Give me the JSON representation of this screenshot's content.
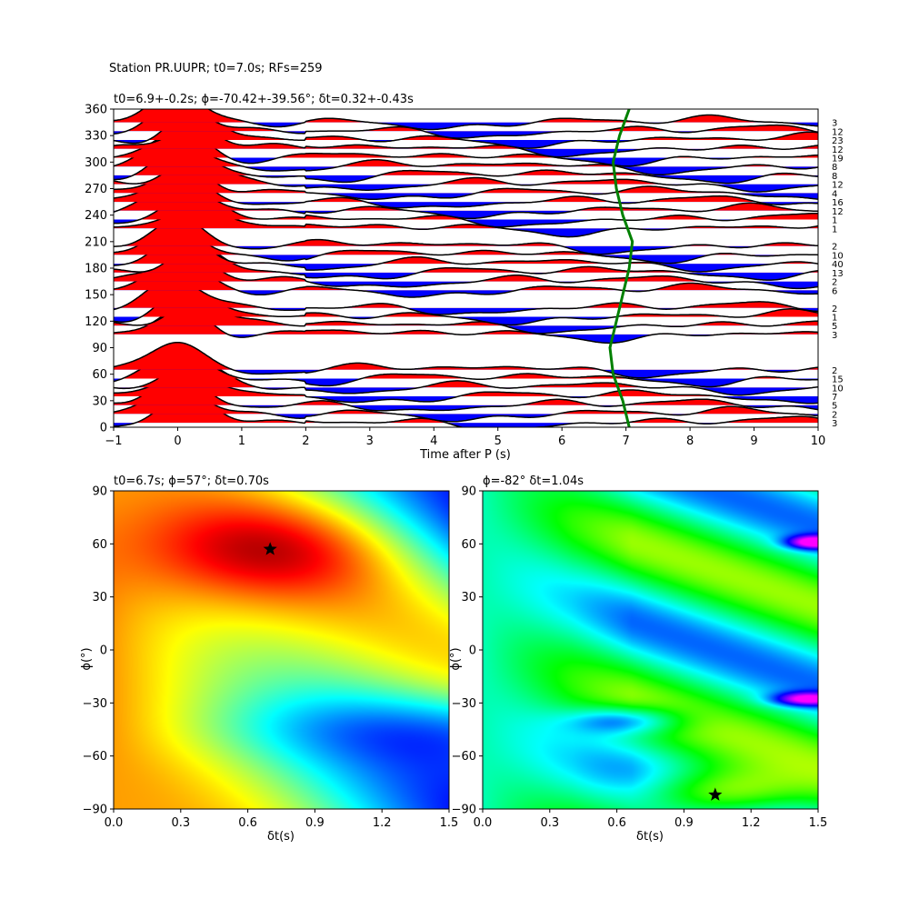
{
  "figure_title": "Station PR.UUPR; t0=7.0s; RFs=259",
  "panels": {
    "top": {
      "title": "t0=6.9+-0.2s; ϕ=-70.42+-39.56°; δt=0.32+-0.43s",
      "xlabel": "Time after P (s)"
    },
    "bottom_left": {
      "title": "t0=6.7s; ϕ=57°; δt=0.70s",
      "xlabel": "δt(s)",
      "ylabel": "ϕ(°)"
    },
    "bottom_right": {
      "title": "ϕ=-82° δt=1.04s",
      "xlabel": "δt(s)",
      "ylabel": "ϕ(°)"
    }
  },
  "colors": {
    "positive": "#ff0000",
    "negative": "#0000ff",
    "trace": "#000000",
    "t0_curve": "#008000",
    "marker": "#000000"
  },
  "chart_data": [
    {
      "type": "line",
      "subtype": "receiver-function wiggle section by back-azimuth",
      "title": "t0=6.9+-0.2s; ϕ=-70.42+-39.56°; δt=0.32+-0.43s",
      "xlabel": "Time after P (s)",
      "ylabel": "",
      "xlim": [
        -1,
        10
      ],
      "ylim": [
        0,
        360
      ],
      "xticks": [
        -1,
        0,
        1,
        2,
        3,
        4,
        5,
        6,
        7,
        8,
        9,
        10
      ],
      "yticks": [
        0,
        30,
        60,
        90,
        120,
        150,
        180,
        210,
        240,
        270,
        300,
        330,
        360
      ],
      "backazimuths": [
        5,
        15,
        25,
        35,
        45,
        55,
        65,
        105,
        115,
        125,
        135,
        155,
        165,
        175,
        185,
        195,
        205,
        225,
        235,
        245,
        255,
        265,
        275,
        285,
        295,
        305,
        315,
        325,
        335,
        345
      ],
      "trace_counts": [
        "3",
        "2",
        "5",
        "7",
        "10",
        "15",
        "2",
        "3",
        "5",
        "1",
        "2",
        "6",
        "2",
        "13",
        "40",
        "10",
        "2",
        "1",
        "1",
        "12",
        "16",
        "4",
        "12",
        "8",
        "8",
        "19",
        "12",
        "23",
        "12",
        "3"
      ],
      "t0_curve": {
        "baz": [
          0,
          30,
          60,
          90,
          120,
          150,
          180,
          210,
          240,
          270,
          300,
          330,
          360
        ],
        "time": [
          7.05,
          6.95,
          6.8,
          6.75,
          6.85,
          6.95,
          7.05,
          7.1,
          6.95,
          6.85,
          6.8,
          6.9,
          7.05
        ]
      },
      "direct_p_arrival_s": 0.1
    },
    {
      "type": "heatmap",
      "title": "t0=6.7s; ϕ=57°; δt=0.70s",
      "xlabel": "δt(s)",
      "ylabel": "ϕ(°)",
      "xlim": [
        0,
        1.5
      ],
      "ylim": [
        -90,
        90
      ],
      "xticks": [
        "0.0",
        "0.3",
        "0.6",
        "0.9",
        "1.2",
        "1.5"
      ],
      "yticks": [
        "−90",
        "−60",
        "−30",
        "0",
        "30",
        "60",
        "90"
      ],
      "colormap": "jet",
      "best": {
        "dt": 0.7,
        "phi": 57
      }
    },
    {
      "type": "heatmap",
      "title": "ϕ=-82° δt=1.04s",
      "xlabel": "δt(s)",
      "ylabel": "ϕ(°)",
      "xlim": [
        0,
        1.5
      ],
      "ylim": [
        -90,
        90
      ],
      "xticks": [
        "0.0",
        "0.3",
        "0.6",
        "0.9",
        "1.2",
        "1.5"
      ],
      "yticks": [
        "−90",
        "−60",
        "−30",
        "0",
        "30",
        "60",
        "90"
      ],
      "colormap": "gist_rainbow_r",
      "best": {
        "dt": 1.04,
        "phi": -82
      }
    }
  ]
}
